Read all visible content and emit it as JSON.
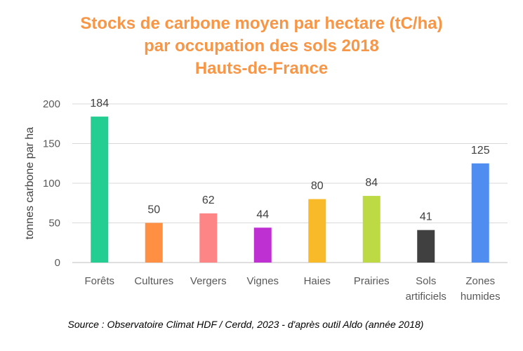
{
  "chart_data": {
    "type": "bar",
    "title_lines": [
      "Stocks de carbone moyen par hectare (tC/ha)",
      "par occupation des sols 2018",
      "Hauts-de-France"
    ],
    "ylabel": "tonnes carbone par ha",
    "xlabel": "",
    "ylim": [
      0,
      200
    ],
    "yticks": [
      0,
      50,
      100,
      150,
      200
    ],
    "grid": true,
    "legend": "none",
    "categories": [
      [
        "Forêts"
      ],
      [
        "Cultures"
      ],
      [
        "Vergers"
      ],
      [
        "Vignes"
      ],
      [
        "Haies"
      ],
      [
        "Prairies"
      ],
      [
        "Sols",
        "artificiels"
      ],
      [
        "Zones",
        "humides"
      ]
    ],
    "values": [
      184,
      50,
      62,
      44,
      80,
      84,
      41,
      125
    ],
    "colors": [
      "#24ce92",
      "#fe8f43",
      "#fd8585",
      "#be30d1",
      "#f9ba2a",
      "#bdd944",
      "#404040",
      "#4f8ef0"
    ],
    "title_color": "#f79646"
  },
  "source": "Source : Observatoire Climat HDF / Cerdd, 2023 - d'après outil Aldo (année 2018)"
}
